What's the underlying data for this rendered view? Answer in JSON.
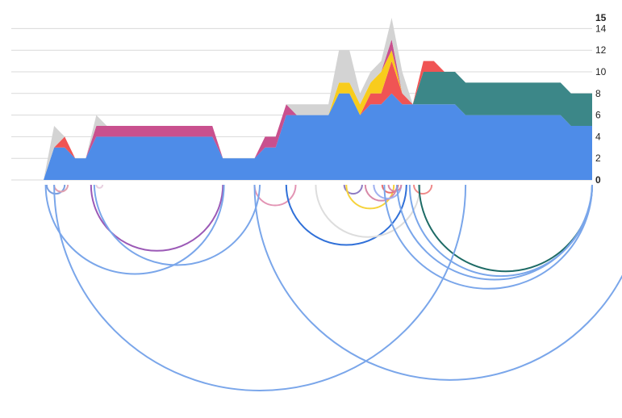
{
  "chart_data": {
    "type": "area",
    "stacked": true,
    "y_axis": {
      "position": "right",
      "ylim": [
        0,
        15
      ],
      "ticks": [
        0,
        2,
        4,
        6,
        8,
        10,
        12,
        14,
        15
      ],
      "bold_ticks": [
        0,
        15
      ],
      "grid": true
    },
    "x": [
      0,
      1,
      2,
      3,
      4,
      5,
      6,
      7,
      8,
      9,
      10,
      11,
      12,
      13,
      14,
      15,
      16,
      17,
      18,
      19,
      20,
      21,
      22,
      23,
      24,
      25,
      26,
      27,
      28,
      29,
      30,
      31,
      32,
      33,
      34,
      35,
      36,
      37,
      38,
      39,
      40,
      41,
      42,
      43,
      44,
      45,
      46,
      47,
      48,
      49,
      50,
      51,
      52
    ],
    "series": [
      {
        "color": "#4e8ce8",
        "values": [
          0,
          3,
          3,
          2,
          2,
          4,
          4,
          4,
          4,
          4,
          4,
          4,
          4,
          4,
          4,
          4,
          4,
          2,
          2,
          2,
          2,
          3,
          3,
          6,
          6,
          6,
          6,
          6,
          8,
          8,
          6,
          7,
          7,
          8,
          7,
          7,
          7,
          7,
          7,
          7,
          6,
          6,
          6,
          6,
          6,
          6,
          6,
          6,
          6,
          6,
          5,
          5,
          5
        ]
      },
      {
        "color": "#3c8788",
        "values": [
          0,
          0,
          0,
          0,
          0,
          0,
          0,
          0,
          0,
          0,
          0,
          0,
          0,
          0,
          0,
          0,
          0,
          0,
          0,
          0,
          0,
          0,
          0,
          0,
          0,
          0,
          0,
          0,
          0,
          0,
          0,
          0,
          0,
          0,
          0,
          0,
          3,
          3,
          3,
          3,
          3,
          3,
          3,
          3,
          3,
          3,
          3,
          3,
          3,
          3,
          3,
          3,
          3
        ]
      },
      {
        "color": "#f05454",
        "values": [
          0,
          0,
          1,
          0,
          0,
          0,
          0,
          0,
          0,
          0,
          0,
          0,
          0,
          0,
          0,
          0,
          0,
          0,
          0,
          0,
          0,
          0,
          0,
          0,
          0,
          0,
          0,
          0,
          0,
          0,
          0,
          1,
          1,
          3,
          1,
          0,
          1,
          1,
          0,
          0,
          0,
          0,
          0,
          0,
          0,
          0,
          0,
          0,
          0,
          0,
          0,
          0,
          0
        ]
      },
      {
        "color": "#f8cc1c",
        "values": [
          0,
          0,
          0,
          0,
          0,
          0,
          0,
          0,
          0,
          0,
          0,
          0,
          0,
          0,
          0,
          0,
          0,
          0,
          0,
          0,
          0,
          0,
          0,
          0,
          0,
          0,
          0,
          0,
          1,
          1,
          1,
          1,
          2,
          1,
          0,
          0,
          0,
          0,
          0,
          0,
          0,
          0,
          0,
          0,
          0,
          0,
          0,
          0,
          0,
          0,
          0,
          0,
          0
        ]
      },
      {
        "color": "#c9508e",
        "values": [
          0,
          0,
          0,
          0,
          0,
          1,
          1,
          1,
          1,
          1,
          1,
          1,
          1,
          1,
          1,
          1,
          1,
          0,
          0,
          0,
          0,
          1,
          1,
          1,
          0,
          0,
          0,
          0,
          0,
          0,
          0,
          0,
          0,
          1,
          0,
          0,
          0,
          0,
          0,
          0,
          0,
          0,
          0,
          0,
          0,
          0,
          0,
          0,
          0,
          0,
          0,
          0,
          0
        ]
      },
      {
        "color": "#d3d3d3",
        "values": [
          0,
          2,
          0,
          0,
          0,
          1,
          0,
          0,
          0,
          0,
          0,
          0,
          0,
          0,
          0,
          0,
          0,
          0,
          0,
          0,
          0,
          0,
          0,
          0,
          1,
          1,
          1,
          1,
          3,
          3,
          1,
          1,
          1,
          2,
          2,
          0,
          0,
          0,
          0,
          0,
          0,
          0,
          0,
          0,
          0,
          0,
          0,
          0,
          0,
          0,
          0,
          0,
          0
        ]
      }
    ],
    "arcs": [
      {
        "from": 0.3,
        "to": 2.0,
        "color": "#7a9fe0"
      },
      {
        "from": 1.0,
        "to": 2.3,
        "color": "#e0a0b0"
      },
      {
        "from": 5.0,
        "to": 5.6,
        "color": "#e8d0e0"
      },
      {
        "from": 4.5,
        "to": 17.0,
        "color": "#9b59b6"
      },
      {
        "from": 0.2,
        "to": 17.1,
        "color": "#7aa6ea"
      },
      {
        "from": 20.0,
        "to": 23.9,
        "color": "#e394b4"
      },
      {
        "from": 23.0,
        "to": 34.4,
        "color": "#3070d8"
      },
      {
        "from": 25.8,
        "to": 35.7,
        "color": "#dddddd"
      },
      {
        "from": 28.5,
        "to": 30.2,
        "color": "#8e7cc3"
      },
      {
        "from": 28.7,
        "to": 33.2,
        "color": "#f6d33c"
      },
      {
        "from": 30.5,
        "to": 33.5,
        "color": "#d889a8"
      },
      {
        "from": 31.3,
        "to": 33.9,
        "color": "#9fb0f0"
      },
      {
        "from": 32.1,
        "to": 33.6,
        "color": "#e87070"
      },
      {
        "from": 32.7,
        "to": 33.9,
        "color": "#d889a8"
      },
      {
        "from": 35.1,
        "to": 36.8,
        "color": "#ef8b8b"
      },
      {
        "from": 35.6,
        "to": 52.0,
        "color": "#1e6b66"
      },
      {
        "from": 34.7,
        "to": 52.0,
        "color": "#7aa6ea"
      },
      {
        "from": 33.5,
        "to": 52.0,
        "color": "#7aa6ea"
      },
      {
        "from": 32.3,
        "to": 52.0,
        "color": "#7aa6ea"
      },
      {
        "from": 1.0,
        "to": 40.0,
        "color": "#7aa6ea"
      },
      {
        "from": 20.0,
        "to": 57.0,
        "color": "#7aa6ea"
      },
      {
        "from": 4.8,
        "to": 20.5,
        "color": "#7aa6ea"
      }
    ]
  }
}
